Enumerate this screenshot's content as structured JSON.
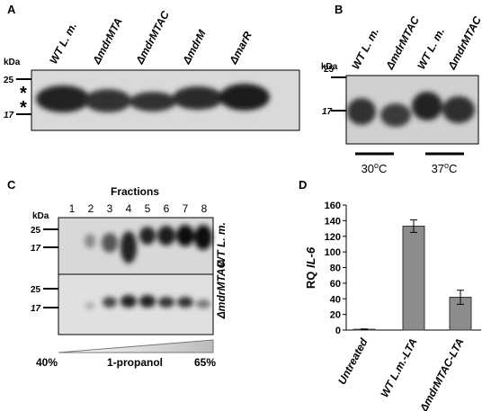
{
  "panels": {
    "a": {
      "label": "A",
      "kda": "kDa",
      "markers": [
        "25",
        "17"
      ],
      "asterisks": [
        "*",
        "*"
      ],
      "lanes": [
        "WT L. m.",
        "ΔmdrMTA",
        "ΔmdrMTAC",
        "ΔmdrM",
        "ΔmarR"
      ]
    },
    "b": {
      "label": "B",
      "kda": "kDa",
      "markers": [
        "25",
        "17"
      ],
      "lanes": [
        "WT L. m.",
        "ΔmdrMTAC",
        "WT L. m.",
        "ΔmdrMTAC"
      ],
      "temperatures": [
        {
          "num": "30",
          "sup": "o",
          "unit": "C"
        },
        {
          "num": "37",
          "sup": "o",
          "unit": "C"
        }
      ]
    },
    "c": {
      "label": "C",
      "title": "Fractions",
      "kda": "kDa",
      "fractions": [
        "1",
        "2",
        "3",
        "4",
        "5",
        "6",
        "7",
        "8"
      ],
      "markers_top": [
        "25",
        "17"
      ],
      "markers_bottom": [
        "25",
        "17"
      ],
      "strains": [
        "WT L. m.",
        "ΔmdrMTAC"
      ],
      "gradient": {
        "start": "40%",
        "label": "1-propanol",
        "end": "65%"
      }
    }
  },
  "chart_data": {
    "type": "bar",
    "panel_label": "D",
    "y_label": "RQ",
    "y_label_gene": "IL-6",
    "categories": [
      "Untreated",
      "WT L.m.-LTA",
      "ΔmdrMTAC-LTA"
    ],
    "values": [
      1,
      133,
      42
    ],
    "errors": [
      0.5,
      8,
      9
    ],
    "color": "#8c8c8c",
    "ylim": [
      0,
      160
    ],
    "yticks": [
      0,
      20,
      40,
      60,
      80,
      100,
      120,
      140,
      160
    ]
  }
}
